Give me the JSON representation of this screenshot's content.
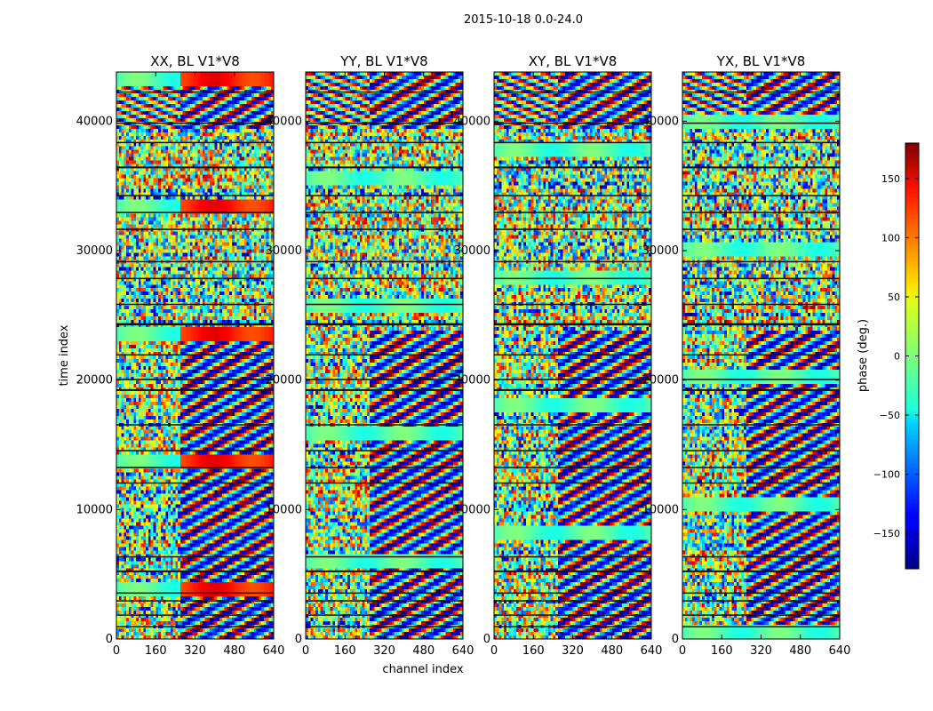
{
  "chart_data": {
    "type": "heatmap",
    "suptitle": "2015-10-18 0.0-24.0",
    "xlabel": "channel index",
    "ylabel": "time index",
    "xlim": [
      0,
      640
    ],
    "ylim": [
      0,
      43800
    ],
    "x_ticks": [
      0,
      160,
      320,
      480,
      640
    ],
    "x_tick_labels": [
      "0",
      "160",
      "320",
      "480",
      "640"
    ],
    "y_ticks": [
      0,
      10000,
      20000,
      30000,
      40000
    ],
    "y_tick_labels": [
      "0",
      "10000",
      "20000",
      "30000",
      "40000"
    ],
    "panels": [
      {
        "title": "XX, BL V1*V8",
        "polarization": "XX",
        "baseline": "V1*V8"
      },
      {
        "title": "YY, BL V1*V8",
        "polarization": "YY",
        "baseline": "V1*V8"
      },
      {
        "title": "XY, BL V1*V8",
        "polarization": "XY",
        "baseline": "V1*V8"
      },
      {
        "title": "YX, BL V1*V8",
        "polarization": "YX",
        "baseline": "V1*V8"
      }
    ],
    "colorbar": {
      "label": "phase (deg.)",
      "range": [
        -180,
        180
      ],
      "ticks": [
        -150,
        -100,
        -50,
        0,
        50,
        100,
        150
      ],
      "tick_labels": [
        "−150",
        "−100",
        "−50",
        "0",
        "50",
        "100",
        "150"
      ],
      "colormap": "jet"
    },
    "flagged_time_bands": [
      [
        800,
        1000
      ],
      [
        1700,
        1900
      ],
      [
        2700,
        3000
      ],
      [
        3300,
        3600
      ],
      [
        4900,
        5300
      ],
      [
        6200,
        6400
      ],
      [
        11900,
        12100
      ],
      [
        13000,
        13300
      ],
      [
        14400,
        14600
      ],
      [
        16300,
        16600
      ],
      [
        18900,
        19300
      ],
      [
        19800,
        20100
      ],
      [
        21800,
        22000
      ],
      [
        23900,
        24400
      ],
      [
        25600,
        25900
      ],
      [
        27600,
        27900
      ],
      [
        29000,
        29200
      ],
      [
        31400,
        31700
      ],
      [
        32800,
        33000
      ],
      [
        34100,
        34300
      ],
      [
        36100,
        36500
      ],
      [
        38200,
        38400
      ],
      [
        39600,
        39900
      ],
      [
        42000,
        42300
      ]
    ]
  }
}
